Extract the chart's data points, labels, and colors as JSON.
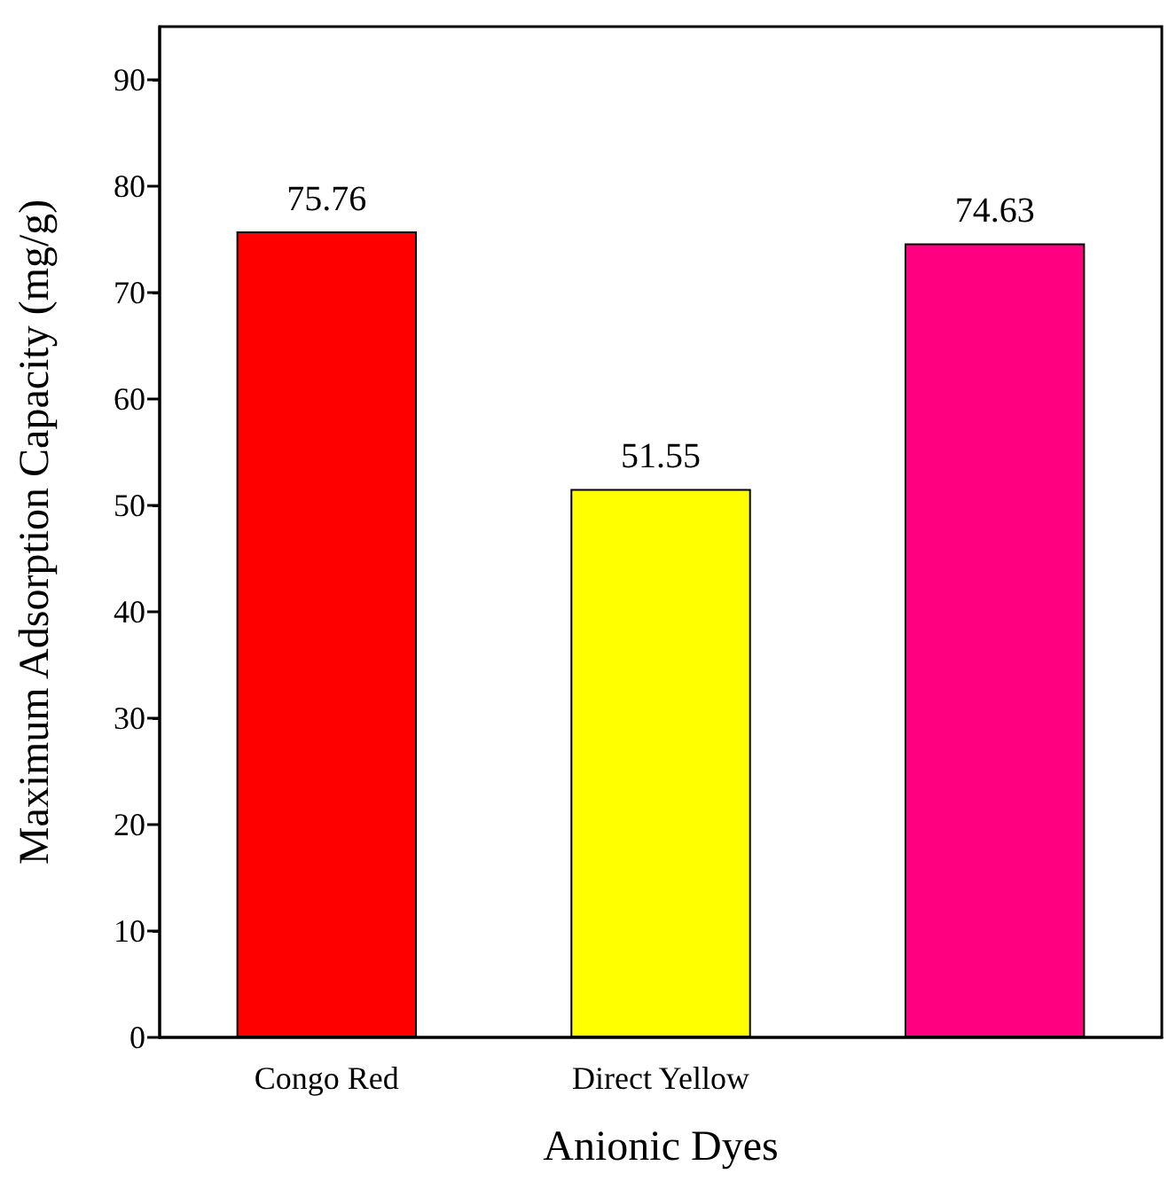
{
  "chart_data": {
    "type": "bar",
    "xlabel": "Anionic Dyes",
    "ylabel": "Maximum Adsorption Capacity (mg/g)",
    "categories": [
      "Congo Red",
      "Direct Yellow",
      null
    ],
    "values": [
      75.76,
      51.55,
      74.63
    ],
    "colors": [
      "#ff0000",
      "#ffff00",
      "#ff0080"
    ],
    "data_labels": true,
    "ylim": [
      0,
      95
    ],
    "yticks": [
      0,
      10,
      20,
      30,
      40,
      50,
      60,
      70,
      80,
      90
    ]
  }
}
